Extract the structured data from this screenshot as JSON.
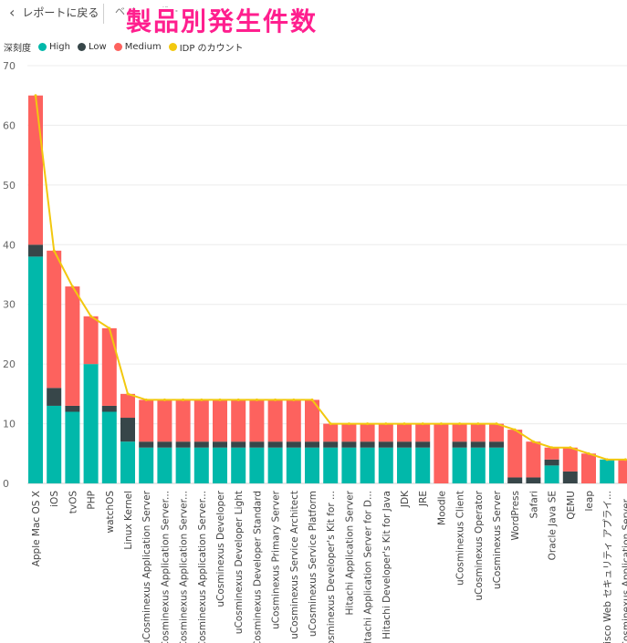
{
  "header": {
    "back_label": "レポートに戻る",
    "partial_text": "ベ    ル　　ボー　ン"
  },
  "overlay_title": "製品別発生件数",
  "legend": {
    "title": "深刻度",
    "items": [
      {
        "label": "High",
        "color": "#01b8aa"
      },
      {
        "label": "Low",
        "color": "#374649"
      },
      {
        "label": "Medium",
        "color": "#fd625e"
      },
      {
        "label": "IDP のカウント",
        "color": "#f2c80f"
      }
    ]
  },
  "chart_data": {
    "type": "bar",
    "stacked": true,
    "categories": [
      "Apple Mac OS X",
      "iOS",
      "tvOS",
      "PHP",
      "watchOS",
      "Linux Kernel",
      "uCosminexus Application Server",
      "uCosminexus Application Server...",
      "uCosminexus Application Server...",
      "uCosminexus Application Server...",
      "uCosminexus Developer",
      "uCosminexus Developer Light",
      "uCosminexus Developer Standard",
      "uCosminexus Primary Server",
      "uCosminexus Service Architect",
      "uCosminexus Service Platform",
      "Cosminexus Developer's Kit for ...",
      "Hitachi Application Server",
      "Hitachi Application Server for D...",
      "Hitachi Developer's Kit for Java",
      "JDK",
      "JRE",
      "Moodle",
      "uCosminexus Client",
      "uCosminexus Operator",
      "uCosminexus Server",
      "WordPress",
      "Safari",
      "Oracle Java SE",
      "QEMU",
      "leap",
      "Cisco Web セキュリティ アプライ...",
      "Cosminexus Application Server..."
    ],
    "series": [
      {
        "name": "High",
        "color": "#01b8aa",
        "values": [
          38,
          13,
          12,
          20,
          12,
          7,
          6,
          6,
          6,
          6,
          6,
          6,
          6,
          6,
          6,
          6,
          6,
          6,
          6,
          6,
          6,
          6,
          0,
          6,
          6,
          6,
          0,
          0,
          3,
          0,
          0,
          4,
          0
        ]
      },
      {
        "name": "Low",
        "color": "#374649",
        "values": [
          2,
          3,
          1,
          0,
          1,
          4,
          1,
          1,
          1,
          1,
          1,
          1,
          1,
          1,
          1,
          1,
          1,
          1,
          1,
          1,
          1,
          1,
          0,
          1,
          1,
          1,
          1,
          1,
          1,
          2,
          0,
          0,
          0
        ]
      },
      {
        "name": "Medium",
        "color": "#fd625e",
        "values": [
          25,
          23,
          20,
          8,
          13,
          4,
          7,
          7,
          7,
          7,
          7,
          7,
          7,
          7,
          7,
          7,
          3,
          3,
          3,
          3,
          3,
          3,
          10,
          3,
          3,
          3,
          8,
          6,
          2,
          4,
          5,
          0,
          4
        ]
      }
    ],
    "line": {
      "name": "IDP のカウント",
      "color": "#f2c80f",
      "values": [
        65,
        39,
        33,
        28,
        26,
        15,
        14,
        14,
        14,
        14,
        14,
        14,
        14,
        14,
        14,
        14,
        10,
        10,
        10,
        10,
        10,
        10,
        10,
        10,
        10,
        10,
        9,
        7,
        6,
        6,
        5,
        4,
        4
      ]
    },
    "y_ticks": [
      "0",
      "10",
      "20",
      "30",
      "40",
      "50",
      "60",
      "70"
    ],
    "ylim": [
      0,
      70
    ],
    "grid": true,
    "legend_position": "top-left"
  }
}
